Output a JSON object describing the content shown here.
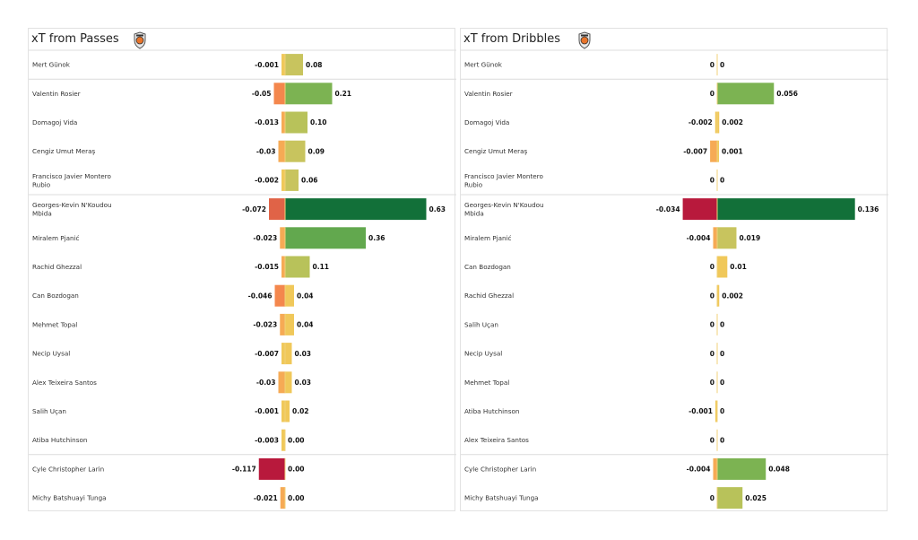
{
  "chart_data": [
    {
      "type": "bar",
      "title": "xT from Passes",
      "orientation": "horizontal-diverging",
      "players": [
        "Mert Günok",
        "Valentin Rosier",
        "Domagoj Vida",
        "Cengiz Umut Meraş",
        "Francisco Javier Montero Rubio",
        "Georges-Kevin N'Koudou Mbida",
        "Miralem Pjanić",
        "Rachid Ghezzal",
        "Can Bozdogan",
        "Mehmet Topal",
        "Necip Uysal",
        "Alex  Teixeira Santos",
        "Salih Uçan",
        "Atiba Hutchinson",
        "Cyle Christopher Larin",
        "Michy Batshuayi Tunga"
      ],
      "series": [
        {
          "values": [
            -0.001,
            -0.05,
            -0.013,
            -0.03,
            -0.002,
            -0.072,
            -0.023,
            -0.015,
            -0.046,
            -0.023,
            -0.007,
            -0.03,
            -0.001,
            -0.003,
            -0.117,
            -0.021
          ],
          "labels": [
            "-0.001",
            "-0.05",
            "-0.013",
            "-0.03",
            "-0.002",
            "-0.072",
            "-0.023",
            "-0.015",
            "-0.046",
            "-0.023",
            "-0.007",
            "-0.03",
            "-0.001",
            "-0.003",
            "-0.117",
            "-0.021"
          ]
        },
        {
          "values": [
            0.08,
            0.21,
            0.1,
            0.09,
            0.06,
            0.63,
            0.36,
            0.11,
            0.04,
            0.04,
            0.03,
            0.03,
            0.02,
            0.0,
            0.0,
            0.0
          ],
          "labels": [
            "0.08",
            "0.21",
            "0.10",
            "0.09",
            "0.06",
            "0.63",
            "0.36",
            "0.11",
            "0.04",
            "0.04",
            "0.03",
            "0.03",
            "0.02",
            "0.00",
            "0.00",
            "0.00"
          ]
        }
      ],
      "group_separators_after": [
        0,
        4,
        13
      ],
      "xlim": [
        -0.14,
        0.7
      ]
    },
    {
      "type": "bar",
      "title": "xT from Dribbles",
      "orientation": "horizontal-diverging",
      "players": [
        "Mert Günok",
        "Valentin Rosier",
        "Domagoj Vida",
        "Cengiz Umut Meraş",
        "Francisco Javier Montero Rubio",
        "Georges-Kevin N'Koudou Mbida",
        "Miralem Pjanić",
        "Can Bozdogan",
        "Rachid Ghezzal",
        "Salih Uçan",
        "Necip Uysal",
        "Mehmet Topal",
        "Atiba Hutchinson",
        "Alex  Teixeira Santos",
        "Cyle Christopher Larin",
        "Michy Batshuayi Tunga"
      ],
      "series": [
        {
          "values": [
            0,
            0,
            -0.002,
            -0.007,
            0,
            -0.034,
            -0.004,
            0,
            0,
            0,
            0,
            0,
            -0.001,
            0,
            -0.004,
            0
          ],
          "labels": [
            "0",
            "0",
            "-0.002",
            "-0.007",
            "0",
            "-0.034",
            "-0.004",
            "0",
            "0",
            "0",
            "0",
            "0",
            "-0.001",
            "0",
            "-0.004",
            "0"
          ]
        },
        {
          "values": [
            0,
            0.056,
            0.002,
            0.001,
            0,
            0.136,
            0.019,
            0.01,
            0.002,
            0,
            0,
            0,
            0,
            0,
            0.048,
            0.025
          ],
          "labels": [
            "0",
            "0.056",
            "0.002",
            "0.001",
            "0",
            "0.136",
            "0.019",
            "0.01",
            "0.002",
            "0",
            "0",
            "0",
            "0",
            "0",
            "0.048",
            "0.025"
          ]
        }
      ],
      "group_separators_after": [
        0,
        4,
        13
      ],
      "xlim": [
        -0.05,
        0.155
      ]
    }
  ],
  "colors": {
    "scale": [
      "#f0c85a",
      "#c8c45e",
      "#b8c25a",
      "#7cb352",
      "#62a84e",
      "#127039",
      "#f6aa55",
      "#f4874d",
      "#e06347",
      "#b8193c"
    ]
  },
  "logo_icon": "club-crest-icon"
}
